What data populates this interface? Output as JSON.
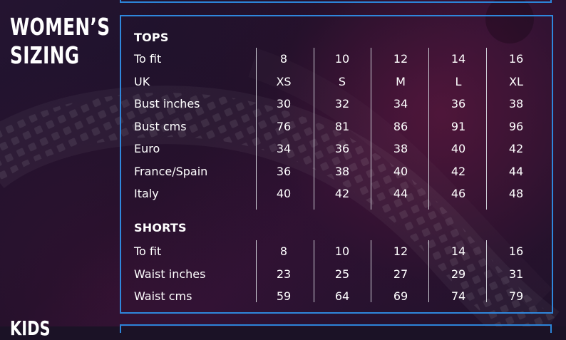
{
  "heading": {
    "line1": "WOMEN’S",
    "line2": "SIZING"
  },
  "bottom_peek_text": "KIDS",
  "tops": {
    "title": "TOPS",
    "rows": [
      {
        "label": "To fit",
        "values": [
          "8",
          "10",
          "12",
          "14",
          "16"
        ]
      },
      {
        "label": "UK",
        "values": [
          "XS",
          "S",
          "M",
          "L",
          "XL"
        ]
      },
      {
        "label": "Bust inches",
        "values": [
          "30",
          "32",
          "34",
          "36",
          "38"
        ]
      },
      {
        "label": "Bust cms",
        "values": [
          "76",
          "81",
          "86",
          "91",
          "96"
        ]
      },
      {
        "label": "Euro",
        "values": [
          "34",
          "36",
          "38",
          "40",
          "42"
        ]
      },
      {
        "label": "France/Spain",
        "values": [
          "36",
          "38",
          "40",
          "42",
          "44"
        ]
      },
      {
        "label": "Italy",
        "values": [
          "40",
          "42",
          "44",
          "46",
          "48"
        ]
      }
    ]
  },
  "shorts": {
    "title": "SHORTS",
    "rows": [
      {
        "label": "To fit",
        "values": [
          "8",
          "10",
          "12",
          "14",
          "16"
        ]
      },
      {
        "label": "Waist inches",
        "values": [
          "23",
          "25",
          "27",
          "29",
          "31"
        ]
      },
      {
        "label": "Waist cms",
        "values": [
          "59",
          "64",
          "69",
          "74",
          "79"
        ]
      }
    ]
  },
  "colors": {
    "border": "#2f87dc",
    "background": "#1d1129",
    "text": "#ffffff",
    "divider": "#cfcfd7"
  }
}
